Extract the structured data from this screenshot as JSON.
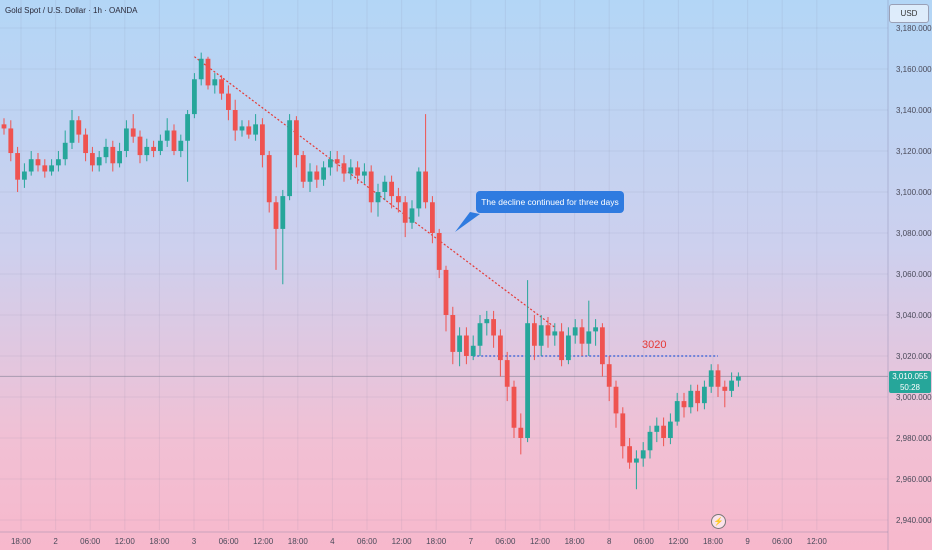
{
  "header": {
    "symbol_title": "Gold Spot / U.S. Dollar · 1h · OANDA",
    "currency": "USD"
  },
  "colors": {
    "up": "#26a69a",
    "down": "#ef5350",
    "trendline": "#e53935",
    "level_line": "#2f5bd6",
    "callout": "#2f7be0"
  },
  "icons": {
    "flash": "lightning-icon"
  },
  "price_label": {
    "price": "3,010.055",
    "countdown": "50:28"
  },
  "annotations": {
    "callout_text": "The decline continued for three days",
    "level_text": "3020"
  },
  "chart_data": {
    "type": "candlestick",
    "title": "Gold Spot / U.S. Dollar · 1h · OANDA",
    "y_ticks": [
      "3,180.000",
      "3,160.000",
      "3,140.000",
      "3,120.000",
      "3,100.000",
      "3,080.000",
      "3,060.000",
      "3,040.000",
      "3,020.000",
      "3,000.000",
      "2,980.000",
      "2,960.000",
      "2,940.000"
    ],
    "x_ticks": [
      "18:00",
      "2",
      "06:00",
      "12:00",
      "18:00",
      "3",
      "06:00",
      "12:00",
      "18:00",
      "4",
      "06:00",
      "12:00",
      "18:00",
      "7",
      "06:00",
      "12:00",
      "18:00",
      "8",
      "06:00",
      "12:00",
      "18:00",
      "9",
      "06:00",
      "12:00"
    ],
    "ylim": [
      2938,
      3186
    ],
    "last_price": 3010.055,
    "candles": [
      [
        3133,
        3131,
        3136,
        3128
      ],
      [
        3131,
        3119,
        3135,
        3115
      ],
      [
        3119,
        3106,
        3122,
        3100
      ],
      [
        3106,
        3110,
        3114,
        3102
      ],
      [
        3110,
        3116,
        3120,
        3108
      ],
      [
        3116,
        3113,
        3119,
        3110
      ],
      [
        3113,
        3110,
        3116,
        3107
      ],
      [
        3110,
        3113,
        3116,
        3108
      ],
      [
        3113,
        3116,
        3120,
        3110
      ],
      [
        3116,
        3124,
        3130,
        3113
      ],
      [
        3124,
        3135,
        3140,
        3121
      ],
      [
        3135,
        3128,
        3137,
        3124
      ],
      [
        3128,
        3119,
        3131,
        3115
      ],
      [
        3119,
        3113,
        3122,
        3110
      ],
      [
        3113,
        3117,
        3120,
        3110
      ],
      [
        3117,
        3122,
        3126,
        3114
      ],
      [
        3122,
        3114,
        3125,
        3110
      ],
      [
        3114,
        3120,
        3124,
        3112
      ],
      [
        3120,
        3131,
        3135,
        3117
      ],
      [
        3131,
        3127,
        3138,
        3124
      ],
      [
        3127,
        3118,
        3130,
        3114
      ],
      [
        3118,
        3122,
        3126,
        3115
      ],
      [
        3122,
        3120,
        3125,
        3117
      ],
      [
        3120,
        3125,
        3128,
        3118
      ],
      [
        3125,
        3130,
        3136,
        3122
      ],
      [
        3130,
        3120,
        3133,
        3118
      ],
      [
        3120,
        3125,
        3128,
        3117
      ],
      [
        3125,
        3138,
        3140,
        3105
      ],
      [
        3138,
        3155,
        3158,
        3136
      ],
      [
        3155,
        3165,
        3168,
        3152
      ],
      [
        3165,
        3152,
        3166,
        3150
      ],
      [
        3152,
        3155,
        3158,
        3148
      ],
      [
        3155,
        3148,
        3157,
        3145
      ],
      [
        3148,
        3140,
        3152,
        3135
      ],
      [
        3140,
        3130,
        3145,
        3125
      ],
      [
        3130,
        3132,
        3135,
        3127
      ],
      [
        3132,
        3128,
        3135,
        3126
      ],
      [
        3128,
        3133,
        3138,
        3125
      ],
      [
        3133,
        3118,
        3136,
        3112
      ],
      [
        3118,
        3095,
        3120,
        3090
      ],
      [
        3095,
        3082,
        3098,
        3062
      ],
      [
        3082,
        3098,
        3101,
        3055
      ],
      [
        3098,
        3135,
        3138,
        3096
      ],
      [
        3135,
        3118,
        3137,
        3112
      ],
      [
        3118,
        3105,
        3120,
        3102
      ],
      [
        3105,
        3110,
        3114,
        3100
      ],
      [
        3110,
        3106,
        3113,
        3102
      ],
      [
        3106,
        3112,
        3115,
        3103
      ],
      [
        3112,
        3116,
        3120,
        3108
      ],
      [
        3116,
        3114,
        3120,
        3110
      ],
      [
        3114,
        3109,
        3118,
        3105
      ],
      [
        3109,
        3112,
        3116,
        3106
      ],
      [
        3112,
        3108,
        3115,
        3104
      ],
      [
        3108,
        3110,
        3114,
        3104
      ],
      [
        3110,
        3095,
        3113,
        3090
      ],
      [
        3095,
        3100,
        3104,
        3088
      ],
      [
        3100,
        3105,
        3108,
        3096
      ],
      [
        3105,
        3098,
        3108,
        3092
      ],
      [
        3098,
        3095,
        3102,
        3090
      ],
      [
        3095,
        3085,
        3098,
        3078
      ],
      [
        3085,
        3092,
        3096,
        3082
      ],
      [
        3092,
        3110,
        3112,
        3088
      ],
      [
        3110,
        3095,
        3138,
        3092
      ],
      [
        3095,
        3080,
        3098,
        3075
      ],
      [
        3080,
        3062,
        3082,
        3058
      ],
      [
        3062,
        3040,
        3064,
        3032
      ],
      [
        3040,
        3022,
        3044,
        3016
      ],
      [
        3022,
        3030,
        3034,
        3015
      ],
      [
        3030,
        3020,
        3034,
        3016
      ],
      [
        3020,
        3025,
        3030,
        3018
      ],
      [
        3025,
        3036,
        3040,
        3020
      ],
      [
        3036,
        3038,
        3042,
        3030
      ],
      [
        3038,
        3030,
        3042,
        3024
      ],
      [
        3030,
        3018,
        3033,
        3010
      ],
      [
        3018,
        3005,
        3022,
        2998
      ],
      [
        3005,
        2985,
        3008,
        2980
      ],
      [
        2985,
        2980,
        2992,
        2972
      ],
      [
        2980,
        3036,
        3057,
        2978
      ],
      [
        3036,
        3025,
        3040,
        3018
      ],
      [
        3025,
        3035,
        3040,
        3020
      ],
      [
        3035,
        3030,
        3039,
        3024
      ],
      [
        3030,
        3032,
        3036,
        3025
      ],
      [
        3032,
        3018,
        3036,
        3015
      ],
      [
        3018,
        3030,
        3034,
        3016
      ],
      [
        3030,
        3034,
        3038,
        3026
      ],
      [
        3034,
        3026,
        3038,
        3020
      ],
      [
        3026,
        3032,
        3047,
        3020
      ],
      [
        3032,
        3034,
        3038,
        3025
      ],
      [
        3034,
        3016,
        3036,
        3010
      ],
      [
        3016,
        3005,
        3020,
        2998
      ],
      [
        3005,
        2992,
        3008,
        2985
      ],
      [
        2992,
        2976,
        2995,
        2970
      ],
      [
        2976,
        2968,
        2980,
        2965
      ],
      [
        2968,
        2970,
        2974,
        2955
      ],
      [
        2970,
        2974,
        2978,
        2966
      ],
      [
        2974,
        2983,
        2986,
        2970
      ],
      [
        2983,
        2986,
        2990,
        2978
      ],
      [
        2986,
        2980,
        2990,
        2976
      ],
      [
        2980,
        2988,
        2992,
        2977
      ],
      [
        2988,
        2998,
        3002,
        2986
      ],
      [
        2998,
        2995,
        3002,
        2990
      ],
      [
        2995,
        3003,
        3006,
        2992
      ],
      [
        3003,
        2997,
        3006,
        2993
      ],
      [
        2997,
        3005,
        3008,
        2994
      ],
      [
        3005,
        3013,
        3016,
        3002
      ],
      [
        3013,
        3005,
        3016,
        3000
      ],
      [
        3005,
        3003,
        3008,
        2995
      ],
      [
        3003,
        3008,
        3012,
        3000
      ],
      [
        3008,
        3010,
        3012,
        3005
      ]
    ],
    "trendline": {
      "from": {
        "index": 28,
        "price": 3166
      },
      "to": {
        "index": 81,
        "price": 3034
      }
    },
    "level": {
      "price": 3020,
      "from_index": 69,
      "to_index": 105
    }
  }
}
